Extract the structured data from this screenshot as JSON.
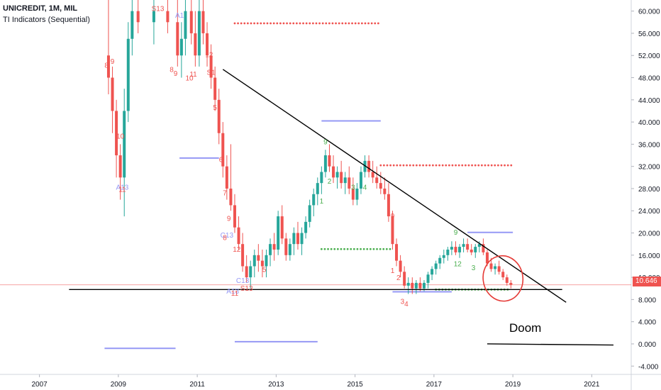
{
  "header": {
    "symbol": "UNICREDIT, 1M, MIL",
    "indicator": "TI Indicators (Sequential)"
  },
  "colors": {
    "up": "#26a69a",
    "down": "#ef5350",
    "support": "#9598f5",
    "resistance_dots": "#ef5350",
    "support_dots": "#4caf50",
    "price_line": "#ef5350"
  },
  "annotations": {
    "doom_label": "Doom",
    "last_price": "10.646"
  },
  "chart_data": {
    "type": "candlestick",
    "title": "UNICREDIT, 1M, MIL",
    "xlabel": "",
    "ylabel": "",
    "xlim": [
      2006.0,
      2022.0
    ],
    "ylim": [
      -5.5,
      62.0
    ],
    "x_ticks": [
      "2007",
      "2009",
      "2011",
      "2013",
      "2015",
      "2017",
      "2019",
      "2021"
    ],
    "y_ticks": [
      "60.000",
      "56.000",
      "52.000",
      "48.000",
      "44.000",
      "40.000",
      "36.000",
      "32.000",
      "28.000",
      "24.000",
      "20.000",
      "16.000",
      "12.000",
      "8.000",
      "4.000",
      "0.000",
      "-4.000"
    ],
    "last_price": 10.646,
    "candles": [
      {
        "t": 2008.75,
        "o": 52,
        "h": 62,
        "l": 45,
        "c": 48
      },
      {
        "t": 2008.85,
        "o": 48,
        "h": 50,
        "l": 38,
        "c": 42
      },
      {
        "t": 2008.95,
        "o": 42,
        "h": 44,
        "l": 30,
        "c": 34
      },
      {
        "t": 2009.05,
        "o": 34,
        "h": 36,
        "l": 26,
        "c": 30
      },
      {
        "t": 2009.15,
        "o": 30,
        "h": 46,
        "l": 23,
        "c": 42
      },
      {
        "t": 2009.25,
        "o": 42,
        "h": 58,
        "l": 40,
        "c": 55
      },
      {
        "t": 2009.35,
        "o": 55,
        "h": 62,
        "l": 52,
        "c": 60
      },
      {
        "t": 2009.5,
        "o": 60,
        "h": 62,
        "l": 56,
        "c": 58
      },
      {
        "t": 2009.9,
        "o": 58,
        "h": 62,
        "l": 54,
        "c": 60
      },
      {
        "t": 2010.25,
        "o": 60,
        "h": 62,
        "l": 56,
        "c": 58
      },
      {
        "t": 2010.5,
        "o": 58,
        "h": 62,
        "l": 50,
        "c": 52
      },
      {
        "t": 2010.6,
        "o": 52,
        "h": 58,
        "l": 48,
        "c": 55
      },
      {
        "t": 2010.7,
        "o": 55,
        "h": 62,
        "l": 52,
        "c": 60
      },
      {
        "t": 2010.85,
        "o": 60,
        "h": 62,
        "l": 54,
        "c": 56
      },
      {
        "t": 2010.95,
        "o": 56,
        "h": 60,
        "l": 50,
        "c": 52
      },
      {
        "t": 2011.05,
        "o": 52,
        "h": 62,
        "l": 50,
        "c": 60
      },
      {
        "t": 2011.15,
        "o": 60,
        "h": 62,
        "l": 54,
        "c": 56
      },
      {
        "t": 2011.25,
        "o": 56,
        "h": 58,
        "l": 50,
        "c": 52
      },
      {
        "t": 2011.35,
        "o": 52,
        "h": 54,
        "l": 46,
        "c": 48
      },
      {
        "t": 2011.45,
        "o": 48,
        "h": 50,
        "l": 42,
        "c": 44
      },
      {
        "t": 2011.55,
        "o": 44,
        "h": 46,
        "l": 36,
        "c": 38
      },
      {
        "t": 2011.65,
        "o": 38,
        "h": 40,
        "l": 30,
        "c": 32
      },
      {
        "t": 2011.75,
        "o": 32,
        "h": 34,
        "l": 26,
        "c": 28
      },
      {
        "t": 2011.85,
        "o": 28,
        "h": 36,
        "l": 24,
        "c": 25
      },
      {
        "t": 2011.95,
        "o": 25,
        "h": 27,
        "l": 20,
        "c": 21
      },
      {
        "t": 2012.05,
        "o": 21,
        "h": 23,
        "l": 17,
        "c": 18
      },
      {
        "t": 2012.15,
        "o": 18,
        "h": 20,
        "l": 13,
        "c": 14
      },
      {
        "t": 2012.25,
        "o": 14,
        "h": 16,
        "l": 11,
        "c": 12
      },
      {
        "t": 2012.35,
        "o": 12,
        "h": 15,
        "l": 10,
        "c": 14
      },
      {
        "t": 2012.45,
        "o": 14,
        "h": 17,
        "l": 12,
        "c": 16
      },
      {
        "t": 2012.55,
        "o": 16,
        "h": 18,
        "l": 13,
        "c": 15
      },
      {
        "t": 2012.65,
        "o": 15,
        "h": 17,
        "l": 12,
        "c": 14
      },
      {
        "t": 2012.75,
        "o": 14,
        "h": 17,
        "l": 12,
        "c": 16
      },
      {
        "t": 2012.85,
        "o": 16,
        "h": 19,
        "l": 14,
        "c": 18
      },
      {
        "t": 2012.95,
        "o": 18,
        "h": 20,
        "l": 15,
        "c": 17
      },
      {
        "t": 2013.05,
        "o": 17,
        "h": 24,
        "l": 16,
        "c": 23
      },
      {
        "t": 2013.15,
        "o": 23,
        "h": 25,
        "l": 18,
        "c": 19
      },
      {
        "t": 2013.25,
        "o": 19,
        "h": 20,
        "l": 15,
        "c": 16
      },
      {
        "t": 2013.35,
        "o": 16,
        "h": 19,
        "l": 15,
        "c": 18
      },
      {
        "t": 2013.45,
        "o": 18,
        "h": 21,
        "l": 16,
        "c": 20
      },
      {
        "t": 2013.55,
        "o": 20,
        "h": 22,
        "l": 17,
        "c": 18
      },
      {
        "t": 2013.65,
        "o": 18,
        "h": 21,
        "l": 16,
        "c": 20
      },
      {
        "t": 2013.75,
        "o": 20,
        "h": 23,
        "l": 19,
        "c": 22
      },
      {
        "t": 2013.85,
        "o": 22,
        "h": 26,
        "l": 21,
        "c": 25
      },
      {
        "t": 2013.95,
        "o": 25,
        "h": 28,
        "l": 23,
        "c": 27
      },
      {
        "t": 2014.05,
        "o": 27,
        "h": 30,
        "l": 25,
        "c": 29
      },
      {
        "t": 2014.15,
        "o": 29,
        "h": 32,
        "l": 27,
        "c": 31
      },
      {
        "t": 2014.25,
        "o": 31,
        "h": 35,
        "l": 30,
        "c": 34
      },
      {
        "t": 2014.35,
        "o": 34,
        "h": 36,
        "l": 31,
        "c": 32
      },
      {
        "t": 2014.45,
        "o": 32,
        "h": 34,
        "l": 29,
        "c": 30
      },
      {
        "t": 2014.55,
        "o": 30,
        "h": 32,
        "l": 28,
        "c": 31
      },
      {
        "t": 2014.65,
        "o": 31,
        "h": 33,
        "l": 28,
        "c": 29
      },
      {
        "t": 2014.75,
        "o": 29,
        "h": 31,
        "l": 27,
        "c": 30
      },
      {
        "t": 2014.85,
        "o": 30,
        "h": 32,
        "l": 27,
        "c": 28
      },
      {
        "t": 2014.95,
        "o": 28,
        "h": 30,
        "l": 25,
        "c": 26
      },
      {
        "t": 2015.05,
        "o": 26,
        "h": 29,
        "l": 25,
        "c": 28
      },
      {
        "t": 2015.15,
        "o": 28,
        "h": 32,
        "l": 27,
        "c": 31
      },
      {
        "t": 2015.25,
        "o": 31,
        "h": 34,
        "l": 30,
        "c": 33
      },
      {
        "t": 2015.35,
        "o": 33,
        "h": 34,
        "l": 30,
        "c": 31
      },
      {
        "t": 2015.45,
        "o": 31,
        "h": 33,
        "l": 29,
        "c": 30
      },
      {
        "t": 2015.55,
        "o": 30,
        "h": 32,
        "l": 28,
        "c": 29
      },
      {
        "t": 2015.65,
        "o": 29,
        "h": 31,
        "l": 27,
        "c": 28
      },
      {
        "t": 2015.75,
        "o": 28,
        "h": 30,
        "l": 26,
        "c": 27
      },
      {
        "t": 2015.85,
        "o": 27,
        "h": 29,
        "l": 22,
        "c": 23
      },
      {
        "t": 2015.95,
        "o": 23,
        "h": 24,
        "l": 17,
        "c": 18
      },
      {
        "t": 2016.05,
        "o": 18,
        "h": 19,
        "l": 14,
        "c": 15
      },
      {
        "t": 2016.15,
        "o": 15,
        "h": 16,
        "l": 12,
        "c": 13
      },
      {
        "t": 2016.25,
        "o": 13,
        "h": 14,
        "l": 10,
        "c": 10.5
      },
      {
        "t": 2016.35,
        "o": 10.5,
        "h": 12,
        "l": 9,
        "c": 11
      },
      {
        "t": 2016.45,
        "o": 11,
        "h": 12,
        "l": 9,
        "c": 10
      },
      {
        "t": 2016.55,
        "o": 10,
        "h": 11.5,
        "l": 9,
        "c": 11
      },
      {
        "t": 2016.65,
        "o": 11,
        "h": 12,
        "l": 9.5,
        "c": 10
      },
      {
        "t": 2016.75,
        "o": 10,
        "h": 11.5,
        "l": 9.5,
        "c": 11
      },
      {
        "t": 2016.85,
        "o": 11,
        "h": 13,
        "l": 10,
        "c": 12.5
      },
      {
        "t": 2016.95,
        "o": 12.5,
        "h": 14,
        "l": 11.5,
        "c": 13.5
      },
      {
        "t": 2017.05,
        "o": 13.5,
        "h": 15,
        "l": 12.5,
        "c": 14.5
      },
      {
        "t": 2017.15,
        "o": 14.5,
        "h": 16,
        "l": 13.5,
        "c": 15.5
      },
      {
        "t": 2017.25,
        "o": 15.5,
        "h": 17,
        "l": 14.5,
        "c": 16
      },
      {
        "t": 2017.35,
        "o": 16,
        "h": 17.5,
        "l": 15,
        "c": 17
      },
      {
        "t": 2017.45,
        "o": 17,
        "h": 18.5,
        "l": 16,
        "c": 17.5
      },
      {
        "t": 2017.55,
        "o": 17.5,
        "h": 18.5,
        "l": 16,
        "c": 16.5
      },
      {
        "t": 2017.65,
        "o": 16.5,
        "h": 18,
        "l": 15.5,
        "c": 17.5
      },
      {
        "t": 2017.75,
        "o": 17.5,
        "h": 19,
        "l": 16.5,
        "c": 18
      },
      {
        "t": 2017.85,
        "o": 18,
        "h": 19,
        "l": 16.5,
        "c": 17
      },
      {
        "t": 2017.95,
        "o": 17,
        "h": 18,
        "l": 16,
        "c": 16.5
      },
      {
        "t": 2018.05,
        "o": 16.5,
        "h": 18,
        "l": 15.5,
        "c": 17.5
      },
      {
        "t": 2018.15,
        "o": 17.5,
        "h": 18.5,
        "l": 16.5,
        "c": 18
      },
      {
        "t": 2018.25,
        "o": 18,
        "h": 19,
        "l": 16,
        "c": 16.5
      },
      {
        "t": 2018.35,
        "o": 16.5,
        "h": 17,
        "l": 14,
        "c": 14.5
      },
      {
        "t": 2018.45,
        "o": 14.5,
        "h": 15.5,
        "l": 13,
        "c": 13.5
      },
      {
        "t": 2018.55,
        "o": 13.5,
        "h": 14.5,
        "l": 12.5,
        "c": 14
      },
      {
        "t": 2018.65,
        "o": 14,
        "h": 15,
        "l": 12.5,
        "c": 13
      },
      {
        "t": 2018.75,
        "o": 13,
        "h": 13.5,
        "l": 11.5,
        "c": 12
      },
      {
        "t": 2018.85,
        "o": 12,
        "h": 12.5,
        "l": 10.5,
        "c": 11
      },
      {
        "t": 2018.95,
        "o": 11,
        "h": 11.5,
        "l": 10,
        "c": 10.646
      }
    ],
    "trendlines": [
      {
        "name": "descending-resistance",
        "color": "#000000",
        "points": [
          [
            2011.65,
            49.5
          ],
          [
            2020.35,
            7.5
          ]
        ]
      },
      {
        "name": "horizontal-support",
        "color": "#000000",
        "points": [
          [
            2007.75,
            9.8
          ],
          [
            2020.25,
            9.8
          ]
        ]
      },
      {
        "name": "doom-line",
        "color": "#000000",
        "points": [
          [
            2018.35,
            0.0
          ],
          [
            2021.55,
            -0.2
          ]
        ]
      }
    ],
    "levels": [
      {
        "kind": "dots",
        "color": "#ef5350",
        "y": 57.8,
        "x": [
          2011.95,
          2015.65
        ]
      },
      {
        "kind": "dots",
        "color": "#ef5350",
        "y": 32.2,
        "x": [
          2015.65,
          2019.0
        ]
      },
      {
        "kind": "dots",
        "color": "#4caf50",
        "y": 17.1,
        "x": [
          2014.15,
          2015.95
        ]
      },
      {
        "kind": "dots",
        "color": "#4caf50",
        "y": 9.8,
        "x": [
          2017.05,
          2018.95
        ]
      },
      {
        "kind": "line",
        "color": "#9598f5",
        "y": -0.8,
        "x": [
          2008.65,
          2010.45
        ]
      },
      {
        "kind": "line",
        "color": "#9598f5",
        "y": 33.5,
        "x": [
          2010.55,
          2011.55
        ]
      },
      {
        "kind": "line",
        "color": "#9598f5",
        "y": 0.4,
        "x": [
          2011.95,
          2014.05
        ]
      },
      {
        "kind": "line",
        "color": "#9598f5",
        "y": 40.2,
        "x": [
          2014.15,
          2015.65
        ]
      },
      {
        "kind": "line",
        "color": "#9598f5",
        "y": 20.1,
        "x": [
          2017.85,
          2019.0
        ]
      },
      {
        "kind": "line",
        "color": "#9598f5",
        "y": 9.4,
        "x": [
          2015.95,
          2017.45
        ]
      }
    ],
    "sequential_labels": [
      {
        "text": "8",
        "t": 2008.7,
        "y": 49.8,
        "color": "#ef5350"
      },
      {
        "text": "9",
        "t": 2008.85,
        "y": 50.5,
        "color": "#ef5350"
      },
      {
        "text": "S13",
        "t": 2010.0,
        "y": 60.0,
        "color": "#ef5350"
      },
      {
        "text": "A1",
        "t": 2010.55,
        "y": 58.8,
        "color": "#9598f5"
      },
      {
        "text": "8",
        "t": 2010.35,
        "y": 49.0,
        "color": "#ef5350"
      },
      {
        "text": "9",
        "t": 2010.45,
        "y": 48.3,
        "color": "#ef5350"
      },
      {
        "text": "10",
        "t": 2010.8,
        "y": 47.5,
        "color": "#ef5350"
      },
      {
        "text": "11",
        "t": 2010.9,
        "y": 48.2,
        "color": "#ef5350"
      },
      {
        "text": "12",
        "t": 2011.3,
        "y": 51.7,
        "color": "#ef5350"
      },
      {
        "text": "S1",
        "t": 2011.35,
        "y": 48.5,
        "color": "#ef5350"
      },
      {
        "text": "5",
        "t": 2011.45,
        "y": 42.2,
        "color": "#ef5350"
      },
      {
        "text": "10",
        "t": 2009.05,
        "y": 37.0,
        "color": "#ef5350"
      },
      {
        "text": "A13",
        "t": 2009.1,
        "y": 27.8,
        "color": "#9598f5"
      },
      {
        "text": "11",
        "t": 2009.1,
        "y": 27.4,
        "color": "#ef5350"
      },
      {
        "text": "6",
        "t": 2011.6,
        "y": 32.8,
        "color": "#ef5350"
      },
      {
        "text": "7",
        "t": 2011.7,
        "y": 26.8,
        "color": "#ef5350"
      },
      {
        "text": "9",
        "t": 2011.8,
        "y": 22.2,
        "color": "#ef5350"
      },
      {
        "text": "C13",
        "t": 2011.75,
        "y": 19.2,
        "color": "#9598f5"
      },
      {
        "text": "8",
        "t": 2011.7,
        "y": 18.7,
        "color": "#ef5350"
      },
      {
        "text": "12",
        "t": 2012.0,
        "y": 16.6,
        "color": "#ef5350"
      },
      {
        "text": "5",
        "t": 2012.7,
        "y": 13.0,
        "color": "#ef5350"
      },
      {
        "text": "C13",
        "t": 2012.15,
        "y": 11.0,
        "color": "#9598f5"
      },
      {
        "text": "S13",
        "t": 2012.25,
        "y": 9.6,
        "color": "#ef5350"
      },
      {
        "text": "A13",
        "t": 2011.9,
        "y": 9.1,
        "color": "#9598f5"
      },
      {
        "text": "11",
        "t": 2011.95,
        "y": 8.7,
        "color": "#ef5350"
      },
      {
        "text": "9",
        "t": 2014.25,
        "y": 36.0,
        "color": "#4caf50"
      },
      {
        "text": "2",
        "t": 2014.35,
        "y": 28.9,
        "color": "#4caf50"
      },
      {
        "text": "1",
        "t": 2014.15,
        "y": 25.3,
        "color": "#4caf50"
      },
      {
        "text": "3",
        "t": 2014.95,
        "y": 27.8,
        "color": "#4caf50"
      },
      {
        "text": "4",
        "t": 2015.25,
        "y": 27.8,
        "color": "#4caf50"
      },
      {
        "text": "9",
        "t": 2015.95,
        "y": 22.6,
        "color": "#ef5350"
      },
      {
        "text": "1",
        "t": 2015.95,
        "y": 12.8,
        "color": "#ef5350"
      },
      {
        "text": "2",
        "t": 2016.1,
        "y": 11.5,
        "color": "#ef5350"
      },
      {
        "text": "3",
        "t": 2016.2,
        "y": 7.2,
        "color": "#ef5350"
      },
      {
        "text": "4",
        "t": 2016.3,
        "y": 6.8,
        "color": "#ef5350"
      },
      {
        "text": "9",
        "t": 2017.55,
        "y": 19.7,
        "color": "#4caf50"
      },
      {
        "text": "12",
        "t": 2017.6,
        "y": 14.0,
        "color": "#4caf50"
      },
      {
        "text": "3",
        "t": 2018.0,
        "y": 13.3,
        "color": "#4caf50"
      }
    ]
  }
}
